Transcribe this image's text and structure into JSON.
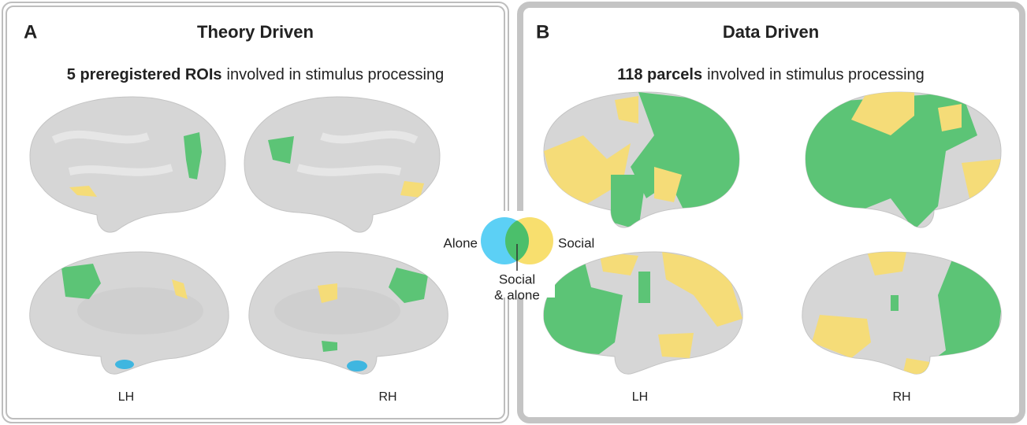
{
  "panel_a": {
    "label": "A",
    "title": "Theory Driven",
    "subtitle_bold": "5 preregistered ROIs",
    "subtitle_rest": "involved in stimulus processing",
    "hemispheres": [
      "LH",
      "RH"
    ]
  },
  "panel_b": {
    "label": "B",
    "title": "Data Driven",
    "subtitle_bold": "118 parcels",
    "subtitle_rest": "involved in stimulus processing",
    "hemispheres": [
      "LH",
      "RH"
    ]
  },
  "legend": {
    "alone": "Alone",
    "social": "Social",
    "both_line1": "Social",
    "both_line2": "& alone"
  }
}
